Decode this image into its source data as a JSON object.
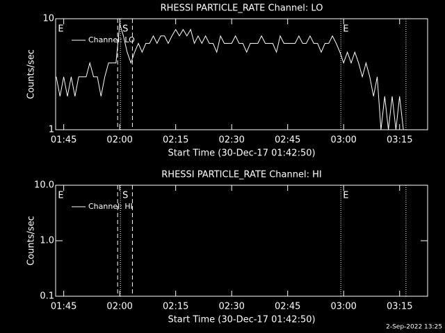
{
  "chart_data": [
    {
      "type": "line",
      "title": "RHESSI PARTICLE_RATE Channel: LO",
      "xlabel": "Start Time (30-Dec-17 01:42:50)",
      "ylabel": "Counts/sec",
      "log_y": true,
      "legend": "top-left",
      "xlim": [
        102.83,
        202.5
      ],
      "ylim": [
        1,
        10
      ],
      "xticks": [
        {
          "value": 105,
          "label": "01:45"
        },
        {
          "value": 120,
          "label": "02:00"
        },
        {
          "value": 135,
          "label": "02:15"
        },
        {
          "value": 150,
          "label": "02:30"
        },
        {
          "value": 165,
          "label": "02:45"
        },
        {
          "value": 180,
          "label": "03:00"
        },
        {
          "value": 195,
          "label": "03:15"
        }
      ],
      "yticks": [
        1,
        10
      ],
      "vlines": [
        {
          "x": 119.44,
          "style": "dashed"
        },
        {
          "x": 120.19,
          "style": "dotted"
        },
        {
          "x": 123.4,
          "style": "dashed"
        },
        {
          "x": 179.25,
          "style": "dotted"
        },
        {
          "x": 196.7,
          "style": "dotted"
        }
      ],
      "markers": [
        {
          "x": 102.9,
          "label": "E"
        },
        {
          "x": 120.19,
          "label": "S"
        },
        {
          "x": 179.25,
          "label": "E"
        }
      ],
      "series": [
        {
          "name": "Channel: LO",
          "color": "#ffffff",
          "x": [
            103,
            104,
            105,
            106,
            107,
            108,
            109,
            110,
            111,
            112,
            113,
            114,
            115,
            116,
            117,
            118,
            119,
            120,
            121,
            122,
            123,
            124,
            125,
            126,
            127,
            128,
            129,
            130,
            131,
            132,
            133,
            134,
            135,
            136,
            137,
            138,
            139,
            140,
            141,
            142,
            143,
            144,
            145,
            146,
            147,
            148,
            149,
            150,
            151,
            152,
            153,
            154,
            155,
            156,
            157,
            158,
            159,
            160,
            161,
            162,
            163,
            164,
            165,
            166,
            167,
            168,
            169,
            170,
            171,
            172,
            173,
            174,
            175,
            176,
            177,
            178,
            179,
            180,
            181,
            182,
            183,
            184,
            185,
            186,
            187,
            188,
            189,
            190,
            191,
            192,
            193,
            194,
            195,
            196
          ],
          "values": [
            3,
            2,
            3,
            2,
            3,
            2,
            3,
            3,
            3,
            4,
            3,
            3,
            2,
            3,
            4,
            4,
            4,
            9,
            7,
            5,
            4,
            5,
            6,
            5,
            6,
            6,
            7,
            6,
            7,
            7,
            6,
            7,
            8,
            7,
            8,
            7,
            8,
            6,
            7,
            6,
            7,
            6,
            6,
            5,
            7,
            6,
            6,
            6,
            7,
            6,
            6,
            5,
            6,
            6,
            6,
            7,
            6,
            6,
            6,
            5,
            7,
            6,
            6,
            6,
            6,
            7,
            6,
            6,
            7,
            6,
            6,
            5,
            6,
            6,
            7,
            6,
            5,
            4,
            5,
            4,
            5,
            4,
            3,
            4,
            3,
            2,
            3,
            1,
            2,
            1,
            2,
            1,
            2,
            1
          ]
        }
      ]
    },
    {
      "type": "line",
      "title": "RHESSI PARTICLE_RATE Channel: HI",
      "xlabel": "Start Time (30-Dec-17 01:42:50)",
      "ylabel": "Counts/sec",
      "log_y": true,
      "legend": "top-left",
      "xlim": [
        102.83,
        202.5
      ],
      "ylim": [
        0.1,
        10
      ],
      "xticks": [
        {
          "value": 105,
          "label": "01:45"
        },
        {
          "value": 120,
          "label": "02:00"
        },
        {
          "value": 135,
          "label": "02:15"
        },
        {
          "value": 150,
          "label": "02:30"
        },
        {
          "value": 165,
          "label": "02:45"
        },
        {
          "value": 180,
          "label": "03:00"
        },
        {
          "value": 195,
          "label": "03:15"
        }
      ],
      "yticks": [
        0.1,
        {
          "value": 1,
          "label": "1.0"
        },
        {
          "value": 10,
          "label": "10.0"
        }
      ],
      "vlines": [
        {
          "x": 119.44,
          "style": "dashed"
        },
        {
          "x": 120.19,
          "style": "dotted"
        },
        {
          "x": 123.4,
          "style": "dashed"
        },
        {
          "x": 179.25,
          "style": "dotted"
        },
        {
          "x": 196.7,
          "style": "dotted"
        }
      ],
      "markers": [
        {
          "x": 102.9,
          "label": "E"
        },
        {
          "x": 120.19,
          "label": "S"
        },
        {
          "x": 179.25,
          "label": "E"
        }
      ],
      "series": [
        {
          "name": "Channel: HI",
          "color": "#ffffff",
          "x": [],
          "values": []
        }
      ]
    }
  ],
  "footer": "2-Sep-2022 13:25"
}
